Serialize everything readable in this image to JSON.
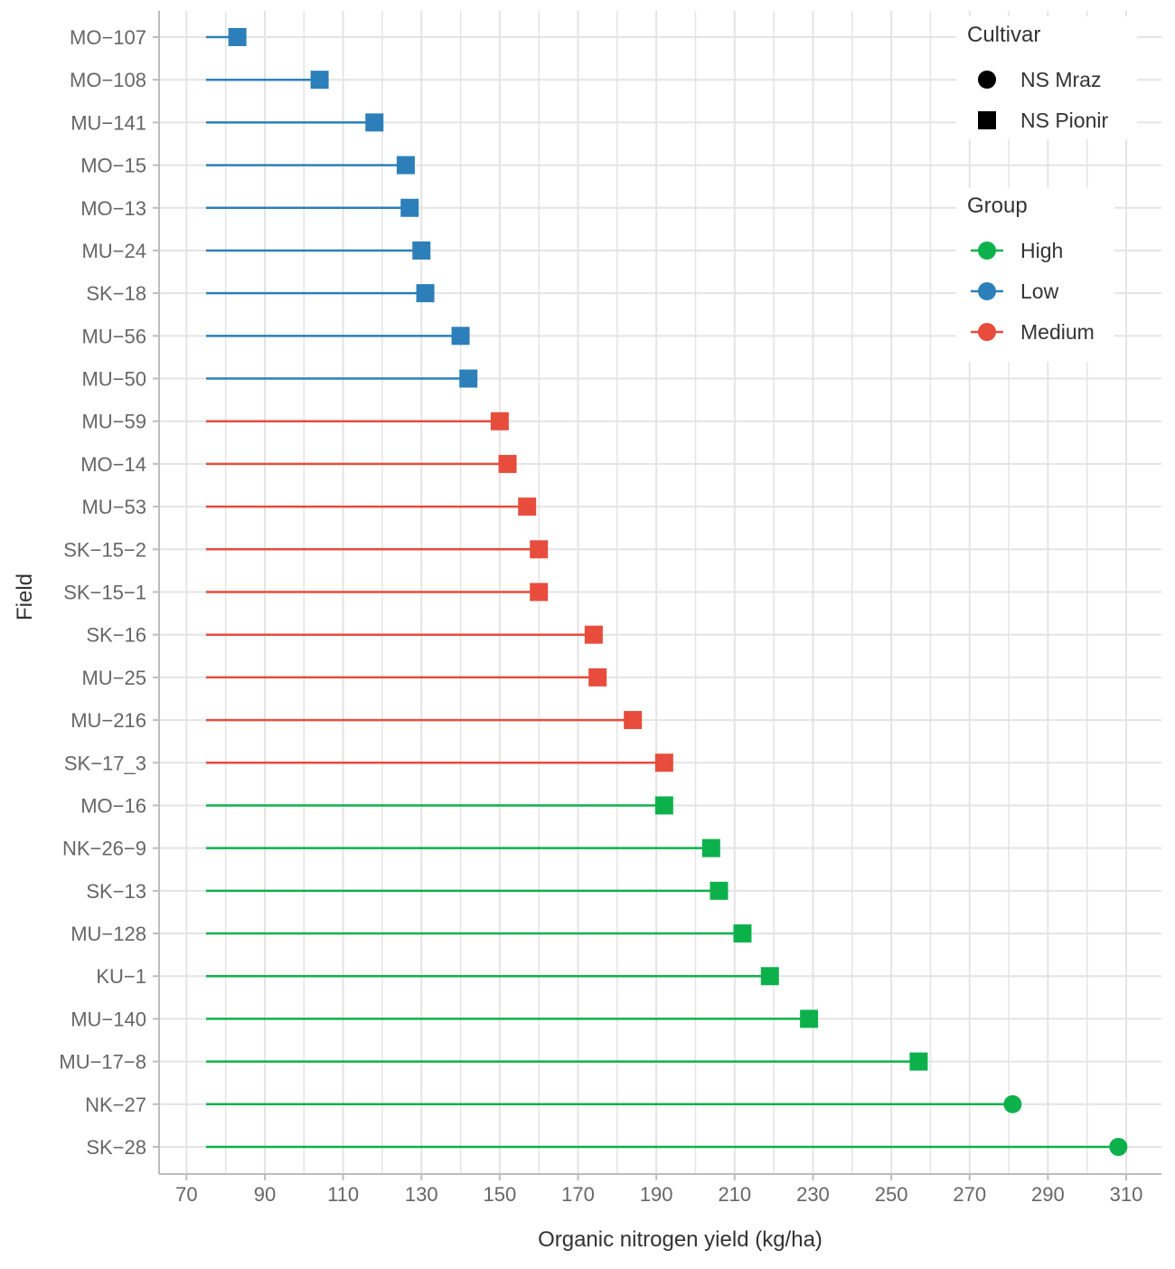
{
  "chart_data": {
    "type": "lollipop",
    "xlabel": "Organic nitrogen yield (kg/ha)",
    "ylabel": "Field",
    "xlim": [
      63,
      319
    ],
    "x_ticks": [
      70,
      90,
      110,
      130,
      150,
      170,
      190,
      210,
      230,
      250,
      270,
      290,
      310
    ],
    "baseline": 75,
    "grid": true,
    "legend_position": "top-right",
    "groups": [
      {
        "name": "High",
        "color": "#0DB14B"
      },
      {
        "name": "Low",
        "color": "#2C7FB8"
      },
      {
        "name": "Medium",
        "color": "#E74C3C"
      }
    ],
    "cultivars": [
      {
        "name": "NS Mraz",
        "shape": "circle"
      },
      {
        "name": "NS Pionir",
        "shape": "square"
      }
    ],
    "legend": {
      "cultivar_title": "Cultivar",
      "group_title": "Group"
    },
    "points": [
      {
        "field": "MO−107",
        "value": 83,
        "group": "Low",
        "cultivar": "NS Pionir"
      },
      {
        "field": "MO−108",
        "value": 104,
        "group": "Low",
        "cultivar": "NS Pionir"
      },
      {
        "field": "MU−141",
        "value": 118,
        "group": "Low",
        "cultivar": "NS Pionir"
      },
      {
        "field": "MO−15",
        "value": 126,
        "group": "Low",
        "cultivar": "NS Pionir"
      },
      {
        "field": "MO−13",
        "value": 127,
        "group": "Low",
        "cultivar": "NS Pionir"
      },
      {
        "field": "MU−24",
        "value": 130,
        "group": "Low",
        "cultivar": "NS Pionir"
      },
      {
        "field": "SK−18",
        "value": 131,
        "group": "Low",
        "cultivar": "NS Pionir"
      },
      {
        "field": "MU−56",
        "value": 140,
        "group": "Low",
        "cultivar": "NS Pionir"
      },
      {
        "field": "MU−50",
        "value": 142,
        "group": "Low",
        "cultivar": "NS Pionir"
      },
      {
        "field": "MU−59",
        "value": 150,
        "group": "Medium",
        "cultivar": "NS Pionir"
      },
      {
        "field": "MO−14",
        "value": 152,
        "group": "Medium",
        "cultivar": "NS Pionir"
      },
      {
        "field": "MU−53",
        "value": 157,
        "group": "Medium",
        "cultivar": "NS Pionir"
      },
      {
        "field": "SK−15−2",
        "value": 160,
        "group": "Medium",
        "cultivar": "NS Pionir"
      },
      {
        "field": "SK−15−1",
        "value": 160,
        "group": "Medium",
        "cultivar": "NS Pionir"
      },
      {
        "field": "SK−16",
        "value": 174,
        "group": "Medium",
        "cultivar": "NS Pionir"
      },
      {
        "field": "MU−25",
        "value": 175,
        "group": "Medium",
        "cultivar": "NS Pionir"
      },
      {
        "field": "MU−216",
        "value": 184,
        "group": "Medium",
        "cultivar": "NS Pionir"
      },
      {
        "field": "SK−17_3",
        "value": 192,
        "group": "Medium",
        "cultivar": "NS Pionir"
      },
      {
        "field": "MO−16",
        "value": 192,
        "group": "High",
        "cultivar": "NS Pionir"
      },
      {
        "field": "NK−26−9",
        "value": 204,
        "group": "High",
        "cultivar": "NS Pionir"
      },
      {
        "field": "SK−13",
        "value": 206,
        "group": "High",
        "cultivar": "NS Pionir"
      },
      {
        "field": "MU−128",
        "value": 212,
        "group": "High",
        "cultivar": "NS Pionir"
      },
      {
        "field": "KU−1",
        "value": 219,
        "group": "High",
        "cultivar": "NS Pionir"
      },
      {
        "field": "MU−140",
        "value": 229,
        "group": "High",
        "cultivar": "NS Pionir"
      },
      {
        "field": "MU−17−8",
        "value": 257,
        "group": "High",
        "cultivar": "NS Pionir"
      },
      {
        "field": "NK−27",
        "value": 281,
        "group": "High",
        "cultivar": "NS Mraz"
      },
      {
        "field": "SK−28",
        "value": 308,
        "group": "High",
        "cultivar": "NS Mraz"
      }
    ]
  }
}
